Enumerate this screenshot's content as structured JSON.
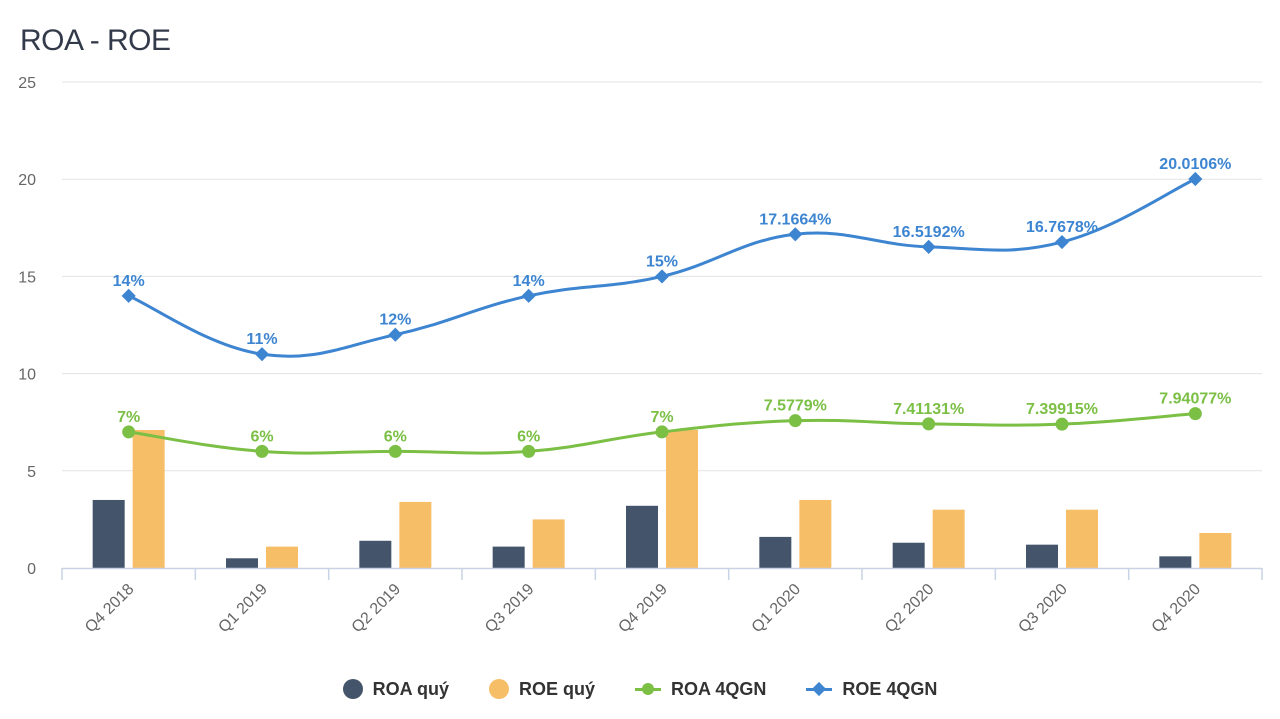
{
  "chart_data": {
    "type": "bar",
    "title": "ROA - ROE",
    "xlabel": "",
    "ylabel": "",
    "categories": [
      "Q4 2018",
      "Q1 2019",
      "Q2 2019",
      "Q3 2019",
      "Q4 2019",
      "Q1 2020",
      "Q2 2020",
      "Q3 2020",
      "Q4 2020"
    ],
    "ylim": [
      0,
      25
    ],
    "yticks": [
      "0",
      "5",
      "10",
      "15",
      "20",
      "25"
    ],
    "grid": true,
    "legend_position": "bottom",
    "series": [
      {
        "name": "ROA quý",
        "kind": "bar",
        "color": "#44546a",
        "values": [
          3.5,
          0.5,
          1.4,
          1.1,
          3.2,
          1.6,
          1.3,
          1.2,
          0.6
        ]
      },
      {
        "name": "ROE quý",
        "kind": "bar",
        "color": "#f7be68",
        "values": [
          7.1,
          1.1,
          3.4,
          2.5,
          7.1,
          3.5,
          3.0,
          3.0,
          1.8
        ]
      },
      {
        "name": "ROA 4QGN",
        "kind": "line",
        "marker": "circle",
        "color": "#7bbf45",
        "values": [
          7,
          6,
          6,
          6,
          7,
          7.5779,
          7.41131,
          7.39915,
          7.94077
        ],
        "labels": [
          "7%",
          "6%",
          "6%",
          "6%",
          "7%",
          "7.5779%",
          "7.41131%",
          "7.39915%",
          "7.94077%"
        ]
      },
      {
        "name": "ROE 4QGN",
        "kind": "line",
        "marker": "diamond",
        "color": "#3d85d1",
        "values": [
          14,
          11,
          12,
          14,
          15,
          17.1664,
          16.5192,
          16.7678,
          20.0106
        ],
        "labels": [
          "14%",
          "11%",
          "12%",
          "14%",
          "15%",
          "17.1664%",
          "16.5192%",
          "16.7678%",
          "20.0106%"
        ]
      }
    ]
  }
}
